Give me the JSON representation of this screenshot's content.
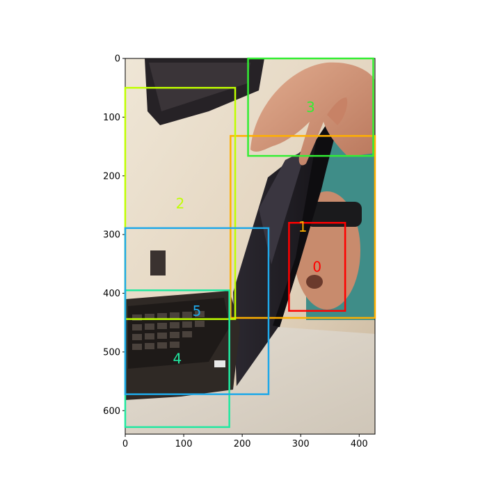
{
  "image": {
    "description_colors": {
      "wall_light": "#e8dcc8",
      "wall_shadow": "#b9a58a",
      "laptop_dark": "#2a2420",
      "screen_dark": "#1c1a1d",
      "hand": "#d59a7c",
      "table": "#d9d2c6",
      "teal_bg": "#3d8c86"
    }
  },
  "axes": {
    "x_ticks": [
      "0",
      "100",
      "200",
      "300",
      "400"
    ],
    "y_ticks": [
      "0",
      "100",
      "200",
      "300",
      "400",
      "500",
      "600"
    ],
    "x_range": [
      0,
      427
    ],
    "y_range": [
      0,
      640
    ]
  },
  "boxes": [
    {
      "label": "0",
      "color": "#ff0000",
      "x0": 280,
      "y0": 280,
      "x1": 376,
      "y1": 430
    },
    {
      "label": "1",
      "color": "#ffb000",
      "x0": 180,
      "y0": 132,
      "x1": 427,
      "y1": 442
    },
    {
      "label": "2",
      "color": "#bfff00",
      "x0": 0,
      "y0": 50,
      "x1": 188,
      "y1": 444
    },
    {
      "label": "3",
      "color": "#33ee33",
      "x0": 210,
      "y0": 0,
      "x1": 424,
      "y1": 166
    },
    {
      "label": "4",
      "color": "#20e8a0",
      "x0": 0,
      "y0": 395,
      "x1": 178,
      "y1": 628
    },
    {
      "label": "5",
      "color": "#1fa8e8",
      "x0": 0,
      "y0": 289,
      "x1": 245,
      "y1": 572
    }
  ]
}
